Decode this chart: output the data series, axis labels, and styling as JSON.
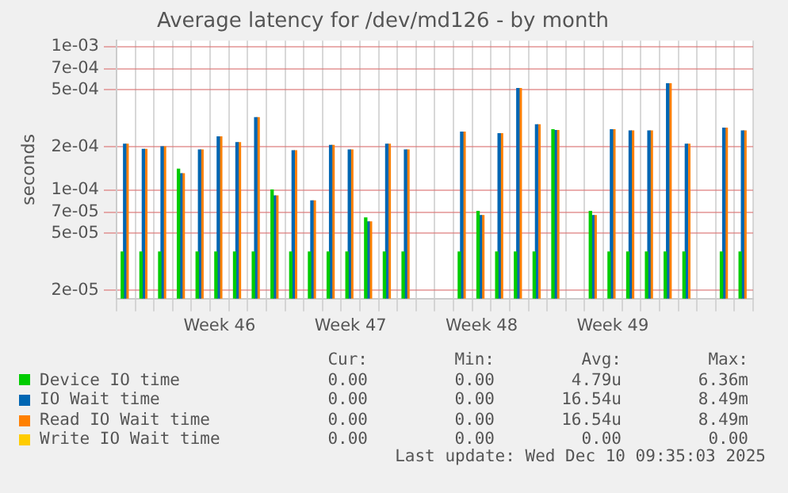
{
  "chart_data": {
    "type": "bar",
    "title": "Average latency for /dev/md126 - by month",
    "ylabel": "seconds",
    "log": true,
    "grid": true,
    "legend": "bottom",
    "categories": [
      null,
      null,
      null,
      null,
      null,
      "Week 46",
      null,
      null,
      null,
      null,
      null,
      null,
      "Week 47",
      null,
      null,
      null,
      null,
      null,
      null,
      "Week 48",
      null,
      null,
      null,
      null,
      null,
      null,
      "Week 49",
      null,
      null,
      null,
      null,
      null,
      null,
      null
    ],
    "ylim": [
      1.75e-05,
      0.0011
    ],
    "yticks": [
      {
        "value": 2e-05,
        "label": "2e-05"
      },
      {
        "value": 5e-05,
        "label": "5e-05"
      },
      {
        "value": 7e-05,
        "label": "7e-05"
      },
      {
        "value": 0.0001,
        "label": "1e-04"
      },
      {
        "value": 0.0002,
        "label": "2e-04"
      },
      {
        "value": 0.0005,
        "label": "5e-04"
      },
      {
        "value": 0.0007,
        "label": "7e-04"
      },
      {
        "value": 0.001,
        "label": "1e-03"
      }
    ],
    "series": [
      {
        "name": "Device IO time",
        "color": "#00cc00",
        "values": [
          3.7e-05,
          3.7e-05,
          3.7e-05,
          0.00014,
          3.7e-05,
          3.7e-05,
          3.7e-05,
          3.7e-05,
          0.0001,
          3.7e-05,
          3.7e-05,
          3.7e-05,
          3.7e-05,
          6.4e-05,
          3.7e-05,
          3.7e-05,
          null,
          null,
          3.7e-05,
          7.1e-05,
          3.7e-05,
          3.7e-05,
          3.7e-05,
          0.000263,
          null,
          7.1e-05,
          3.7e-05,
          3.7e-05,
          3.7e-05,
          3.7e-05,
          3.7e-05,
          null,
          3.7e-05,
          3.7e-05
        ]
      },
      {
        "name": "IO Wait time",
        "color": "#0066b3",
        "values": [
          0.000209,
          0.000192,
          0.0002,
          0.00013,
          0.00019,
          0.000235,
          0.000214,
          0.00032,
          9.1e-05,
          0.000188,
          8.4e-05,
          0.000205,
          0.00019,
          6e-05,
          0.000209,
          0.00019,
          null,
          null,
          0.000253,
          6.65e-05,
          0.000247,
          0.00051,
          0.000285,
          0.00026,
          null,
          6.65e-05,
          0.000263,
          0.000258,
          0.000258,
          0.00055,
          0.000209,
          null,
          0.00027,
          0.000258
        ]
      },
      {
        "name": "Read IO Wait time",
        "color": "#ff8000",
        "values": [
          0.000209,
          0.000192,
          0.0002,
          0.00013,
          0.00019,
          0.000235,
          0.000214,
          0.00032,
          9.1e-05,
          0.000188,
          8.4e-05,
          0.000205,
          0.00019,
          6e-05,
          0.000209,
          0.00019,
          null,
          null,
          0.000253,
          6.65e-05,
          0.000247,
          0.00051,
          0.000285,
          0.00026,
          null,
          6.65e-05,
          0.000263,
          0.000258,
          0.000258,
          0.00055,
          0.000209,
          null,
          0.00027,
          0.000258
        ]
      },
      {
        "name": "Write IO Wait time",
        "color": "#ffcc00",
        "values": [
          null,
          null,
          null,
          null,
          null,
          null,
          null,
          null,
          null,
          null,
          null,
          null,
          null,
          null,
          null,
          null,
          null,
          null,
          null,
          null,
          null,
          null,
          null,
          null,
          null,
          null,
          null,
          null,
          null,
          null,
          null,
          null,
          null,
          null
        ]
      }
    ],
    "annotations": [
      "Cur:",
      "Min:",
      "Avg:",
      "Max:",
      "0.00",
      "0.00",
      "4.79u",
      "6.36m",
      "0.00",
      "0.00",
      "16.54u",
      "8.49m",
      "0.00",
      "0.00",
      "16.54u",
      "8.49m",
      "0.00",
      "0.00",
      "0.00",
      "0.00",
      "Last update: Wed Dec 10 09:35:03 2025"
    ]
  }
}
